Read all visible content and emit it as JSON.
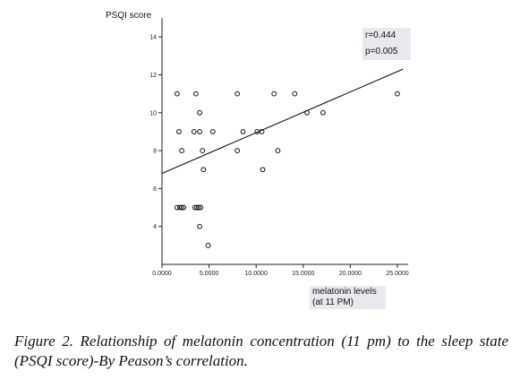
{
  "chart_data": {
    "type": "scatter",
    "ylabel": "PSQI score",
    "xlabel_lines": [
      "melatonin levels",
      "(at 11 PM)"
    ],
    "x_tick_labels": [
      "0.0000",
      "5.0000",
      "10.0000",
      "15.0000",
      "20.0000",
      "25.0000"
    ],
    "x_ticks": [
      0,
      5,
      10,
      15,
      20,
      25
    ],
    "y_ticks": [
      4,
      6,
      8,
      10,
      12,
      14
    ],
    "xlim": [
      0,
      25
    ],
    "ylim": [
      2,
      15
    ],
    "grid": false,
    "stats": {
      "r": "r=0.444",
      "p": "p=0.005"
    },
    "fit_line": {
      "x": [
        0,
        25.6
      ],
      "y": [
        6.8,
        12.3
      ]
    },
    "points": [
      {
        "x": 1.6,
        "y": 11
      },
      {
        "x": 3.6,
        "y": 11
      },
      {
        "x": 8.0,
        "y": 11
      },
      {
        "x": 11.9,
        "y": 11
      },
      {
        "x": 14.1,
        "y": 11
      },
      {
        "x": 25.0,
        "y": 11
      },
      {
        "x": 4.0,
        "y": 10
      },
      {
        "x": 15.4,
        "y": 10
      },
      {
        "x": 17.1,
        "y": 10
      },
      {
        "x": 1.8,
        "y": 9
      },
      {
        "x": 3.4,
        "y": 9
      },
      {
        "x": 4.0,
        "y": 9
      },
      {
        "x": 5.4,
        "y": 9
      },
      {
        "x": 8.6,
        "y": 9
      },
      {
        "x": 10.1,
        "y": 9
      },
      {
        "x": 10.6,
        "y": 9
      },
      {
        "x": 2.1,
        "y": 8
      },
      {
        "x": 4.3,
        "y": 8
      },
      {
        "x": 8.0,
        "y": 8
      },
      {
        "x": 12.3,
        "y": 8
      },
      {
        "x": 4.4,
        "y": 7
      },
      {
        "x": 10.7,
        "y": 7
      },
      {
        "x": 1.6,
        "y": 5
      },
      {
        "x": 1.9,
        "y": 5
      },
      {
        "x": 2.1,
        "y": 5
      },
      {
        "x": 2.3,
        "y": 5
      },
      {
        "x": 3.5,
        "y": 5
      },
      {
        "x": 3.7,
        "y": 5
      },
      {
        "x": 3.9,
        "y": 5
      },
      {
        "x": 4.1,
        "y": 5
      },
      {
        "x": 4.0,
        "y": 4
      },
      {
        "x": 4.9,
        "y": 3
      }
    ]
  },
  "caption": "Figure 2. Relationship of melatonin concentration (11 pm) to the sleep state (PSQI score)-By Peason’s correlation."
}
